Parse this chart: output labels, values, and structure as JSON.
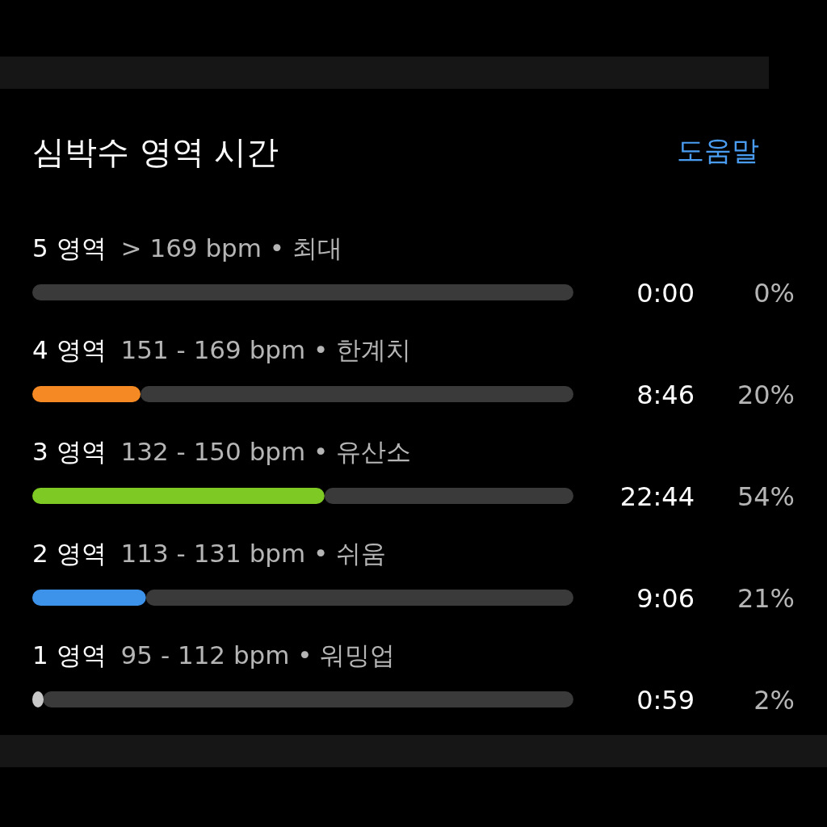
{
  "chart_data": {
    "type": "bar",
    "orientation": "horizontal",
    "stacked": true,
    "title": "심박수 영역 시간",
    "categories": [
      "5 영역  > 169 bpm • 최대",
      "4 영역  151 - 169 bpm • 한계치",
      "3 영역  132 - 150 bpm • 유산소",
      "2 영역  113 - 131 bpm • 쉬움",
      "1 영역  95 - 112 bpm • 워밍업"
    ],
    "series": [
      {
        "colors": [
          "#e0443e",
          "#f58a24",
          "#7ec923",
          "#3d93ea",
          "#c8c8c8"
        ],
        "values": [
          0,
          20,
          54,
          21,
          2
        ],
        "value_labels": [
          "0%",
          "20%",
          "54%",
          "21%",
          "2%"
        ]
      },
      {
        "color": "#3a3a3a",
        "values": [
          100,
          80,
          46,
          79,
          98
        ]
      }
    ],
    "xlim": [
      0,
      100
    ],
    "tick_labels": false,
    "annotations": [
      "0:00",
      "8:46",
      "22:44",
      "9:06",
      "0:59",
      "도움말"
    ]
  }
}
